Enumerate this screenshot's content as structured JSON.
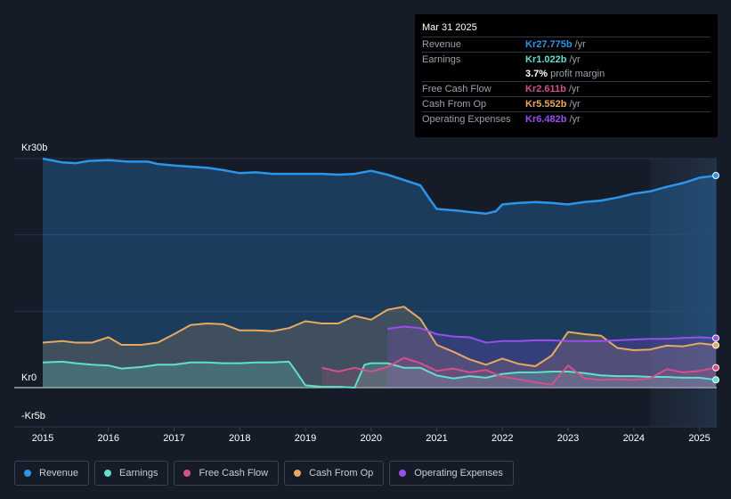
{
  "tooltip": {
    "date": "Mar 31 2025",
    "rows": [
      {
        "label": "Revenue",
        "value": "Kr27.775b",
        "unit": "/yr",
        "color": "#2b95e9"
      },
      {
        "label": "Earnings",
        "value": "Kr1.022b",
        "unit": "/yr",
        "color": "#5fe0c8"
      },
      {
        "label": "",
        "value": "3.7%",
        "unit": "profit margin",
        "color": "#ffffff"
      },
      {
        "label": "Free Cash Flow",
        "value": "Kr2.611b",
        "unit": "/yr",
        "color": "#d4508a"
      },
      {
        "label": "Cash From Op",
        "value": "Kr5.552b",
        "unit": "/yr",
        "color": "#e8a85f"
      },
      {
        "label": "Operating Expenses",
        "value": "Kr6.482b",
        "unit": "/yr",
        "color": "#9b4df0"
      }
    ]
  },
  "legend": [
    {
      "label": "Revenue",
      "color": "#2b95e9"
    },
    {
      "label": "Earnings",
      "color": "#5fe0c8"
    },
    {
      "label": "Free Cash Flow",
      "color": "#d4508a"
    },
    {
      "label": "Cash From Op",
      "color": "#e8a85f"
    },
    {
      "label": "Operating Expenses",
      "color": "#9b4df0"
    }
  ],
  "chart_data": {
    "type": "area",
    "title": "",
    "xlabel": "",
    "ylabel": "",
    "unit": "Kr billions",
    "ylim": [
      -5,
      30
    ],
    "xlim": [
      2015.0,
      2025.25
    ],
    "y_tick_labels": [
      {
        "value": 30,
        "label": "Kr30b"
      },
      {
        "value": 0,
        "label": "Kr0"
      },
      {
        "value": -5,
        "label": "-Kr5b"
      }
    ],
    "x_tick_labels": [
      "2015",
      "2016",
      "2017",
      "2018",
      "2019",
      "2020",
      "2021",
      "2022",
      "2023",
      "2024",
      "2025"
    ],
    "x_ticks": [
      2015,
      2016,
      2017,
      2018,
      2019,
      2020,
      2021,
      2022,
      2023,
      2024,
      2025
    ],
    "forecast_start": 2024.25,
    "series": [
      {
        "name": "Revenue",
        "color": "#2b95e9",
        "points": [
          [
            2015.0,
            30.0
          ],
          [
            2015.3,
            29.5
          ],
          [
            2015.5,
            29.4
          ],
          [
            2015.7,
            29.7
          ],
          [
            2016.0,
            29.8
          ],
          [
            2016.3,
            29.6
          ],
          [
            2016.6,
            29.6
          ],
          [
            2016.75,
            29.3
          ],
          [
            2017.0,
            29.1
          ],
          [
            2017.5,
            28.8
          ],
          [
            2017.75,
            28.5
          ],
          [
            2018.0,
            28.1
          ],
          [
            2018.25,
            28.2
          ],
          [
            2018.5,
            28.0
          ],
          [
            2018.75,
            28.0
          ],
          [
            2019.0,
            28.0
          ],
          [
            2019.25,
            28.0
          ],
          [
            2019.5,
            27.9
          ],
          [
            2019.75,
            28.0
          ],
          [
            2020.0,
            28.4
          ],
          [
            2020.25,
            27.9
          ],
          [
            2020.5,
            27.2
          ],
          [
            2020.75,
            26.5
          ],
          [
            2020.9,
            24.6
          ],
          [
            2021.0,
            23.4
          ],
          [
            2021.3,
            23.2
          ],
          [
            2021.5,
            23.0
          ],
          [
            2021.75,
            22.8
          ],
          [
            2021.9,
            23.1
          ],
          [
            2022.0,
            24.0
          ],
          [
            2022.25,
            24.2
          ],
          [
            2022.5,
            24.3
          ],
          [
            2022.75,
            24.2
          ],
          [
            2023.0,
            24.0
          ],
          [
            2023.25,
            24.3
          ],
          [
            2023.5,
            24.5
          ],
          [
            2023.75,
            24.9
          ],
          [
            2024.0,
            25.4
          ],
          [
            2024.25,
            25.7
          ],
          [
            2024.5,
            26.3
          ],
          [
            2024.75,
            26.8
          ],
          [
            2025.0,
            27.5
          ],
          [
            2025.25,
            27.775
          ]
        ]
      },
      {
        "name": "Earnings",
        "color": "#5fe0c8",
        "points": [
          [
            2015.0,
            3.3
          ],
          [
            2015.3,
            3.4
          ],
          [
            2015.5,
            3.2
          ],
          [
            2015.75,
            3.0
          ],
          [
            2016.0,
            2.9
          ],
          [
            2016.2,
            2.5
          ],
          [
            2016.5,
            2.7
          ],
          [
            2016.75,
            3.0
          ],
          [
            2017.0,
            3.0
          ],
          [
            2017.25,
            3.3
          ],
          [
            2017.5,
            3.3
          ],
          [
            2017.75,
            3.2
          ],
          [
            2018.0,
            3.2
          ],
          [
            2018.25,
            3.3
          ],
          [
            2018.5,
            3.3
          ],
          [
            2018.75,
            3.4
          ],
          [
            2018.85,
            2.2
          ],
          [
            2019.0,
            0.3
          ],
          [
            2019.25,
            0.1
          ],
          [
            2019.5,
            0.1
          ],
          [
            2019.75,
            0.0
          ],
          [
            2019.9,
            3.0
          ],
          [
            2020.0,
            3.2
          ],
          [
            2020.25,
            3.2
          ],
          [
            2020.5,
            2.6
          ],
          [
            2020.75,
            2.6
          ],
          [
            2021.0,
            1.6
          ],
          [
            2021.25,
            1.2
          ],
          [
            2021.5,
            1.5
          ],
          [
            2021.75,
            1.3
          ],
          [
            2022.0,
            1.8
          ],
          [
            2022.25,
            2.0
          ],
          [
            2022.5,
            2.0
          ],
          [
            2022.75,
            2.1
          ],
          [
            2023.0,
            2.1
          ],
          [
            2023.25,
            1.9
          ],
          [
            2023.5,
            1.6
          ],
          [
            2023.75,
            1.5
          ],
          [
            2024.0,
            1.5
          ],
          [
            2024.25,
            1.4
          ],
          [
            2024.5,
            1.4
          ],
          [
            2024.75,
            1.3
          ],
          [
            2025.0,
            1.3
          ],
          [
            2025.25,
            1.022
          ]
        ]
      },
      {
        "name": "Free Cash Flow",
        "color": "#d4508a",
        "points": [
          [
            2019.25,
            2.6
          ],
          [
            2019.5,
            2.1
          ],
          [
            2019.75,
            2.6
          ],
          [
            2020.0,
            2.1
          ],
          [
            2020.25,
            2.7
          ],
          [
            2020.5,
            3.9
          ],
          [
            2020.75,
            3.2
          ],
          [
            2021.0,
            2.2
          ],
          [
            2021.25,
            2.5
          ],
          [
            2021.5,
            2.0
          ],
          [
            2021.75,
            2.3
          ],
          [
            2022.0,
            1.4
          ],
          [
            2022.25,
            1.1
          ],
          [
            2022.5,
            0.7
          ],
          [
            2022.75,
            0.4
          ],
          [
            2023.0,
            2.9
          ],
          [
            2023.25,
            1.2
          ],
          [
            2023.5,
            1.0
          ],
          [
            2023.75,
            1.1
          ],
          [
            2024.0,
            1.0
          ],
          [
            2024.25,
            1.2
          ],
          [
            2024.5,
            2.4
          ],
          [
            2024.75,
            2.0
          ],
          [
            2025.0,
            2.2
          ],
          [
            2025.25,
            2.611
          ]
        ]
      },
      {
        "name": "Cash From Op",
        "color": "#e8a85f",
        "points": [
          [
            2015.0,
            5.9
          ],
          [
            2015.3,
            6.1
          ],
          [
            2015.5,
            5.9
          ],
          [
            2015.75,
            5.9
          ],
          [
            2016.0,
            6.6
          ],
          [
            2016.2,
            5.6
          ],
          [
            2016.5,
            5.6
          ],
          [
            2016.75,
            5.9
          ],
          [
            2017.0,
            7.0
          ],
          [
            2017.25,
            8.2
          ],
          [
            2017.5,
            8.4
          ],
          [
            2017.75,
            8.3
          ],
          [
            2018.0,
            7.5
          ],
          [
            2018.25,
            7.5
          ],
          [
            2018.5,
            7.4
          ],
          [
            2018.75,
            7.8
          ],
          [
            2019.0,
            8.7
          ],
          [
            2019.25,
            8.4
          ],
          [
            2019.5,
            8.4
          ],
          [
            2019.75,
            9.4
          ],
          [
            2020.0,
            8.9
          ],
          [
            2020.25,
            10.2
          ],
          [
            2020.5,
            10.6
          ],
          [
            2020.75,
            9.0
          ],
          [
            2021.0,
            5.6
          ],
          [
            2021.25,
            4.7
          ],
          [
            2021.5,
            3.7
          ],
          [
            2021.75,
            3.0
          ],
          [
            2022.0,
            3.8
          ],
          [
            2022.25,
            3.1
          ],
          [
            2022.5,
            2.8
          ],
          [
            2022.75,
            4.2
          ],
          [
            2023.0,
            7.3
          ],
          [
            2023.25,
            7.0
          ],
          [
            2023.5,
            6.8
          ],
          [
            2023.75,
            5.2
          ],
          [
            2024.0,
            4.9
          ],
          [
            2024.25,
            5.0
          ],
          [
            2024.5,
            5.5
          ],
          [
            2024.75,
            5.4
          ],
          [
            2025.0,
            5.8
          ],
          [
            2025.25,
            5.552
          ]
        ]
      },
      {
        "name": "Operating Expenses",
        "color": "#9b4df0",
        "points": [
          [
            2020.25,
            7.7
          ],
          [
            2020.5,
            8.0
          ],
          [
            2020.75,
            7.8
          ],
          [
            2021.0,
            7.0
          ],
          [
            2021.25,
            6.7
          ],
          [
            2021.5,
            6.6
          ],
          [
            2021.75,
            5.9
          ],
          [
            2022.0,
            6.1
          ],
          [
            2022.25,
            6.1
          ],
          [
            2022.5,
            6.2
          ],
          [
            2022.75,
            6.2
          ],
          [
            2023.0,
            6.1
          ],
          [
            2023.25,
            6.1
          ],
          [
            2023.5,
            6.1
          ],
          [
            2023.75,
            6.2
          ],
          [
            2024.0,
            6.3
          ],
          [
            2024.25,
            6.4
          ],
          [
            2024.5,
            6.4
          ],
          [
            2024.75,
            6.5
          ],
          [
            2025.0,
            6.6
          ],
          [
            2025.25,
            6.482
          ]
        ]
      }
    ]
  }
}
